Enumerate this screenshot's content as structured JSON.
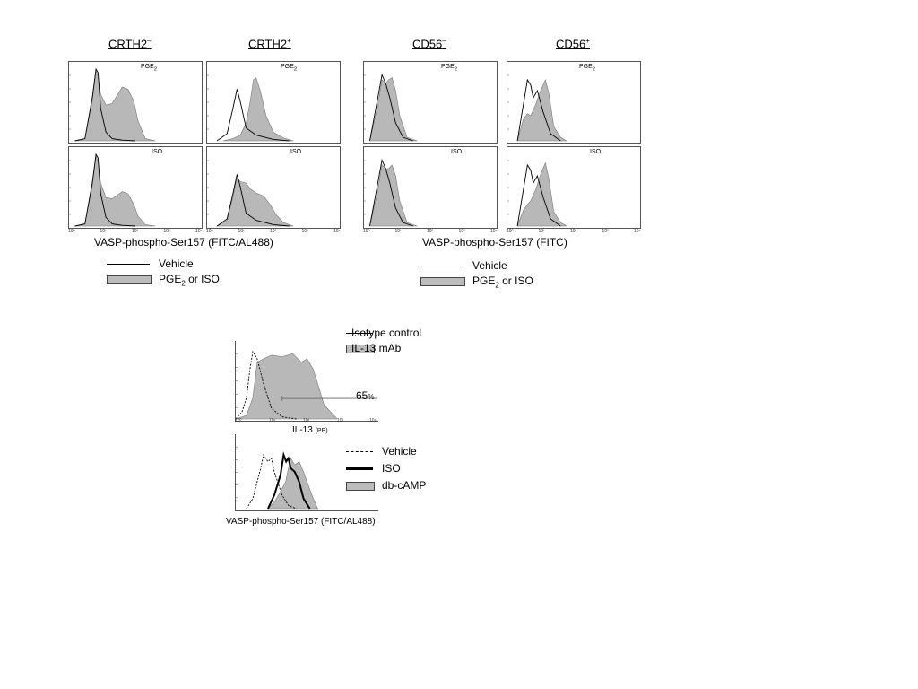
{
  "top_figure": {
    "left_group": {
      "columns": [
        {
          "title": "CRTH2",
          "sup": "–"
        },
        {
          "title": "CRTH2",
          "sup": "+"
        }
      ],
      "xlabel": "VASP-phospho-Ser157 (FITC/AL488)"
    },
    "right_group": {
      "columns": [
        {
          "title": "CD56",
          "sup": "–"
        },
        {
          "title": "CD56",
          "sup": "+"
        }
      ],
      "xlabel": "VASP-phospho-Ser157 (FITC)"
    },
    "row_labels": [
      "PGE2",
      "ISO"
    ],
    "x_ticks": [
      "10⁰",
      "10¹",
      "10²",
      "10³",
      "10⁴"
    ],
    "legend": {
      "vehicle": "Vehicle",
      "treatment": "PGE2 or ISO"
    }
  },
  "bottom_figure": {
    "upper": {
      "legend": {
        "isotype": "Isotype control",
        "il13": "IL-13 mAb"
      },
      "percent": "65",
      "percent_unit": "%",
      "xlabel_main": "IL-13",
      "xlabel_sub": "(PE)"
    },
    "lower": {
      "legend": {
        "vehicle": "Vehicle",
        "iso": "ISO",
        "dbcamp": "db-cAMP"
      },
      "xlabel": "VASP-phospho-Ser157 (FITC/AL488)"
    }
  },
  "chart_data": [
    {
      "type": "area",
      "title": "CRTH2– / PGE2",
      "xlabel": "VASP-phospho-Ser157 (FITC/AL488)",
      "xscale": "log",
      "xlim": [
        1,
        10000
      ],
      "series": [
        {
          "name": "Vehicle",
          "style": "line",
          "x": [
            1.5,
            3,
            5,
            6.5,
            7.5,
            9,
            13,
            20,
            40,
            100
          ],
          "y": [
            0,
            3,
            60,
            100,
            95,
            45,
            12,
            3,
            1,
            0
          ]
        },
        {
          "name": "PGE2",
          "style": "fill",
          "x": [
            1.5,
            3,
            5,
            6.5,
            7.5,
            9,
            13,
            20,
            40,
            60,
            90,
            120,
            200,
            400
          ],
          "y": [
            0,
            3,
            55,
            98,
            90,
            65,
            50,
            52,
            75,
            72,
            55,
            28,
            3,
            0
          ]
        }
      ]
    },
    {
      "type": "area",
      "title": "CRTH2+ / PGE2",
      "xscale": "log",
      "xlim": [
        1,
        10000
      ],
      "series": [
        {
          "name": "Vehicle",
          "style": "line",
          "x": [
            2,
            4,
            6,
            8,
            10,
            15,
            30,
            100,
            300
          ],
          "y": [
            0,
            10,
            45,
            72,
            55,
            18,
            8,
            2,
            0
          ]
        },
        {
          "name": "PGE2",
          "style": "fill",
          "x": [
            3,
            6,
            10,
            15,
            20,
            25,
            30,
            40,
            60,
            100,
            200,
            400
          ],
          "y": [
            0,
            3,
            8,
            25,
            55,
            85,
            88,
            70,
            35,
            12,
            4,
            0
          ]
        }
      ]
    },
    {
      "type": "area",
      "title": "CD56– / PGE2",
      "xscale": "log",
      "xlim": [
        1,
        10000
      ],
      "series": [
        {
          "name": "Vehicle",
          "style": "line",
          "x": [
            1.5,
            2.5,
            3.5,
            4.5,
            6,
            9,
            15,
            30
          ],
          "y": [
            0,
            55,
            92,
            80,
            60,
            25,
            5,
            0
          ]
        },
        {
          "name": "PGE2",
          "style": "fill",
          "x": [
            1.5,
            2.5,
            3.5,
            4.5,
            5.5,
            7,
            9,
            12,
            20,
            40
          ],
          "y": [
            0,
            45,
            85,
            80,
            85,
            88,
            70,
            35,
            5,
            0
          ]
        }
      ]
    },
    {
      "type": "area",
      "title": "CD56+ / PGE2",
      "xscale": "log",
      "xlim": [
        1,
        10000
      ],
      "series": [
        {
          "name": "Vehicle",
          "style": "line",
          "x": [
            2,
            3,
            4,
            5,
            6,
            8,
            12,
            20,
            40
          ],
          "y": [
            0,
            50,
            85,
            78,
            60,
            70,
            40,
            10,
            0
          ]
        },
        {
          "name": "PGE2",
          "style": "fill",
          "x": [
            2,
            3,
            4,
            5,
            7,
            10,
            14,
            18,
            25,
            40,
            60
          ],
          "y": [
            0,
            30,
            38,
            35,
            50,
            70,
            85,
            65,
            20,
            5,
            0
          ]
        }
      ]
    },
    {
      "type": "area",
      "title": "CRTH2– / ISO",
      "xscale": "log",
      "xlim": [
        1,
        10000
      ],
      "series": [
        {
          "name": "Vehicle",
          "style": "line",
          "x": [
            1.5,
            3,
            5,
            6.5,
            7.5,
            9,
            13,
            20,
            40,
            100
          ],
          "y": [
            0,
            3,
            60,
            100,
            95,
            45,
            12,
            3,
            1,
            0
          ]
        },
        {
          "name": "ISO",
          "style": "fill",
          "x": [
            1.5,
            3,
            5,
            6.5,
            7.5,
            9,
            13,
            20,
            40,
            60,
            90,
            120,
            200,
            400
          ],
          "y": [
            0,
            3,
            55,
            98,
            90,
            60,
            40,
            38,
            48,
            45,
            30,
            14,
            2,
            0
          ]
        }
      ]
    },
    {
      "type": "area",
      "title": "CRTH2+ / ISO",
      "xscale": "log",
      "xlim": [
        1,
        10000
      ],
      "series": [
        {
          "name": "Vehicle",
          "style": "line",
          "x": [
            2,
            4,
            6,
            8,
            10,
            15,
            30,
            100,
            300
          ],
          "y": [
            0,
            10,
            45,
            72,
            55,
            18,
            8,
            2,
            0
          ]
        },
        {
          "name": "ISO",
          "style": "fill",
          "x": [
            2,
            4,
            6,
            8,
            10,
            15,
            20,
            30,
            50,
            80,
            120,
            200,
            400
          ],
          "y": [
            0,
            8,
            40,
            68,
            62,
            60,
            52,
            46,
            42,
            30,
            16,
            5,
            0
          ]
        }
      ]
    },
    {
      "type": "area",
      "title": "CD56– / ISO",
      "xscale": "log",
      "xlim": [
        1,
        10000
      ],
      "series": [
        {
          "name": "Vehicle",
          "style": "line",
          "x": [
            1.5,
            2.5,
            3.5,
            4.5,
            6,
            9,
            15,
            30
          ],
          "y": [
            0,
            55,
            92,
            80,
            60,
            25,
            5,
            0
          ]
        },
        {
          "name": "ISO",
          "style": "fill",
          "x": [
            1.5,
            2.5,
            3.5,
            4.5,
            5.5,
            7,
            9,
            12,
            20,
            40
          ],
          "y": [
            0,
            45,
            85,
            80,
            80,
            85,
            70,
            35,
            5,
            0
          ]
        }
      ]
    },
    {
      "type": "area",
      "title": "CD56+ / ISO",
      "xscale": "log",
      "xlim": [
        1,
        10000
      ],
      "series": [
        {
          "name": "Vehicle",
          "style": "line",
          "x": [
            2,
            3,
            4,
            5,
            6,
            8,
            12,
            20,
            40
          ],
          "y": [
            0,
            50,
            85,
            78,
            60,
            70,
            40,
            10,
            0
          ]
        },
        {
          "name": "ISO",
          "style": "fill",
          "x": [
            2,
            3,
            4,
            5,
            7,
            10,
            14,
            18,
            25,
            40,
            60
          ],
          "y": [
            0,
            22,
            30,
            35,
            50,
            72,
            88,
            65,
            20,
            5,
            0
          ]
        }
      ]
    },
    {
      "type": "area",
      "title": "IL-13 (PE)",
      "xlabel": "IL-13 (PE)",
      "xscale": "log",
      "xlim": [
        1,
        10000
      ],
      "series": [
        {
          "name": "Isotype control",
          "style": "dashed",
          "x": [
            1,
            1.5,
            2,
            2.5,
            3,
            4,
            6,
            10,
            20,
            50
          ],
          "y": [
            0,
            10,
            30,
            70,
            95,
            85,
            50,
            15,
            3,
            0
          ]
        },
        {
          "name": "IL-13 mAb",
          "style": "fill",
          "x": [
            1,
            2,
            3,
            4,
            6,
            10,
            20,
            40,
            70,
            100,
            150,
            300,
            700
          ],
          "y": [
            0,
            5,
            30,
            80,
            85,
            90,
            88,
            92,
            80,
            85,
            70,
            20,
            0
          ]
        }
      ],
      "annotation": {
        "text": "65%",
        "gate_from": 20,
        "gate_to": 10000
      }
    },
    {
      "type": "area",
      "title": "VASP-phospho-Ser157 (FITC/AL488)",
      "xlabel": "VASP-phospho-Ser157 (FITC/AL488)",
      "xscale": "log",
      "xlim": [
        1,
        10000
      ],
      "series": [
        {
          "name": "Vehicle",
          "style": "dashed",
          "x": [
            2,
            3,
            4,
            5,
            6,
            8,
            10,
            12,
            15,
            20,
            30,
            50
          ],
          "y": [
            0,
            15,
            40,
            60,
            80,
            70,
            75,
            55,
            40,
            20,
            5,
            0
          ]
        },
        {
          "name": "ISO",
          "style": "thick",
          "x": [
            8,
            12,
            18,
            22,
            26,
            30,
            35,
            45,
            60,
            80,
            120
          ],
          "y": [
            0,
            20,
            50,
            80,
            70,
            75,
            60,
            55,
            40,
            15,
            0
          ]
        },
        {
          "name": "db-cAMP",
          "style": "fill",
          "x": [
            8,
            12,
            18,
            25,
            30,
            35,
            45,
            60,
            80,
            100,
            150,
            200
          ],
          "y": [
            0,
            10,
            25,
            40,
            60,
            75,
            65,
            70,
            55,
            40,
            15,
            0
          ]
        }
      ]
    }
  ]
}
